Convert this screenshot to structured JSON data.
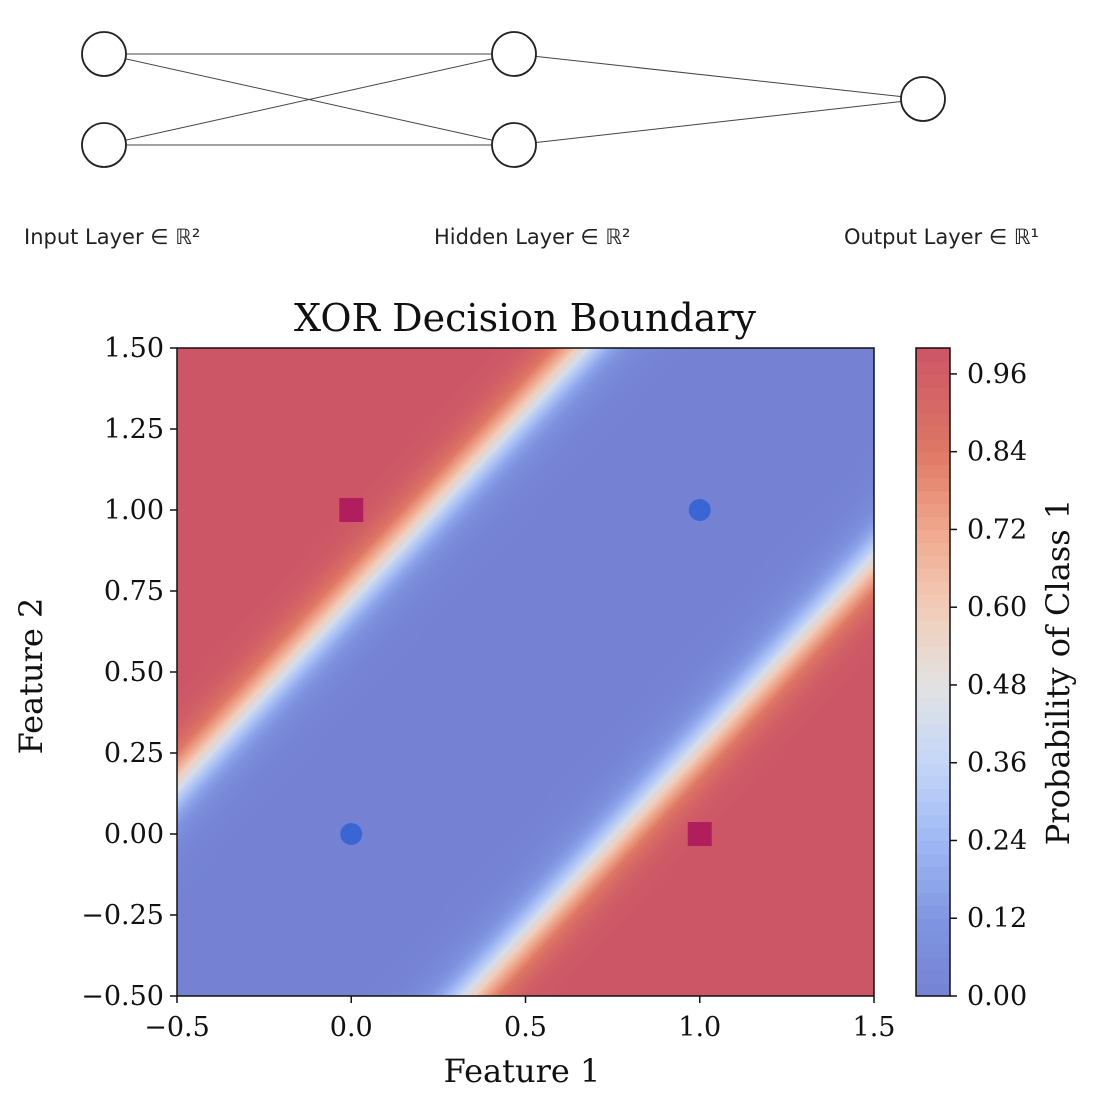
{
  "network": {
    "layers": [
      {
        "label": "Input Layer ∈ ℝ²",
        "neurons": 2
      },
      {
        "label": "Hidden Layer ∈ ℝ²",
        "neurons": 2
      },
      {
        "label": "Output Layer ∈ ℝ¹",
        "neurons": 1
      }
    ],
    "edge_color": "#444444",
    "node_stroke": "#222222"
  },
  "chart_data": {
    "type": "heatmap",
    "title": "XOR Decision Boundary",
    "xlabel": "Feature 1",
    "ylabel": "Feature 2",
    "xlim": [
      -0.5,
      1.5
    ],
    "ylim": [
      -0.5,
      1.5
    ],
    "xticks": [
      -0.5,
      0.0,
      0.5,
      1.0,
      1.5
    ],
    "xtick_labels": [
      "−0.5",
      "0.0",
      "0.5",
      "1.0",
      "1.5"
    ],
    "yticks": [
      -0.5,
      -0.25,
      0.0,
      0.25,
      0.5,
      0.75,
      1.0,
      1.25,
      1.5
    ],
    "ytick_labels": [
      "−0.50",
      "−0.25",
      "0.00",
      "0.25",
      "0.50",
      "0.75",
      "1.00",
      "1.25",
      "1.50"
    ],
    "colormap": "coolwarm",
    "low_color": "#7582d4",
    "high_color": "#cc5566",
    "colorbar": {
      "label": "Probability of Class 1",
      "range": [
        0.0,
        1.0
      ],
      "ticks": [
        0.0,
        0.12,
        0.24,
        0.36,
        0.48,
        0.6,
        0.72,
        0.84,
        0.96
      ],
      "tick_labels": [
        "0.00",
        "0.12",
        "0.24",
        "0.36",
        "0.48",
        "0.60",
        "0.72",
        "0.84",
        "0.96"
      ]
    },
    "decision_boundaries": [
      {
        "relation": "y = x + 0.75"
      },
      {
        "relation": "y = x - 0.75"
      }
    ],
    "points": [
      {
        "x": 0,
        "y": 0,
        "class": 0,
        "marker": "circle",
        "color": "#3a66d4"
      },
      {
        "x": 1,
        "y": 1,
        "class": 0,
        "marker": "circle",
        "color": "#3a66d4"
      },
      {
        "x": 0,
        "y": 1,
        "class": 1,
        "marker": "square",
        "color": "#b01e5e"
      },
      {
        "x": 1,
        "y": 0,
        "class": 1,
        "marker": "square",
        "color": "#b01e5e"
      }
    ]
  }
}
